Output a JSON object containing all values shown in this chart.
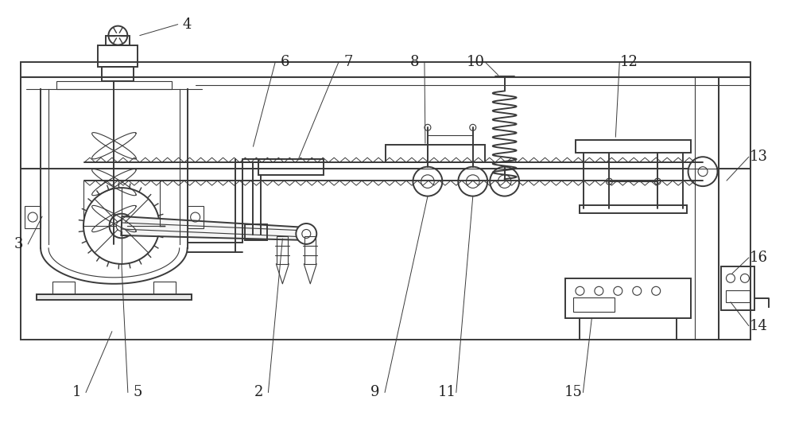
{
  "bg_color": "#ffffff",
  "line_color": "#3a3a3a",
  "lw": 1.4,
  "tlw": 0.8,
  "label_fontsize": 13,
  "label_color": "#222222"
}
